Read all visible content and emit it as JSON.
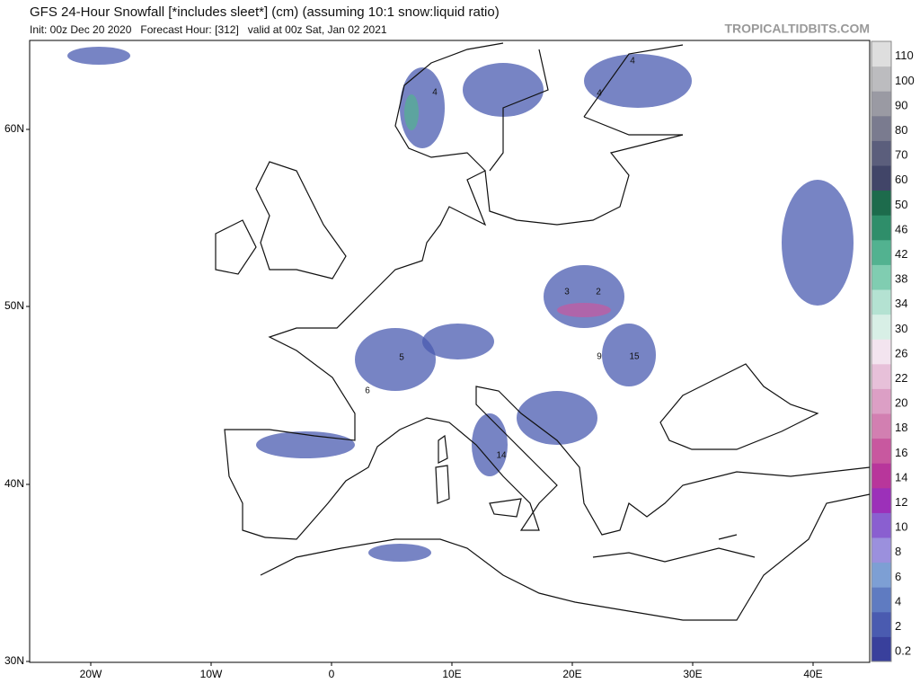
{
  "header": {
    "title": "GFS 24-Hour Snowfall [*includes sleet*] (cm) (assuming 10:1 snow:liquid ratio)",
    "subtitle": "Init: 00z Dec 20 2020   Forecast Hour: [312]   valid at 00z Sat, Jan 02 2021",
    "watermark": "TROPICALTIDBITS.COM"
  },
  "map": {
    "lat_labels": [
      "60N",
      "50N",
      "40N",
      "30N"
    ],
    "lon_labels": [
      "20W",
      "10W",
      "0",
      "10E",
      "20E",
      "30E",
      "40E"
    ],
    "contour_labels": [
      "4",
      "4",
      "4",
      "3",
      "2",
      "5",
      "6",
      "15",
      "9",
      "14"
    ]
  },
  "colorbar": {
    "levels": [
      {
        "label": "0.2",
        "color": "#39409c"
      },
      {
        "label": "2",
        "color": "#4a5bb0"
      },
      {
        "label": "4",
        "color": "#5f7bc1"
      },
      {
        "label": "6",
        "color": "#7d9fd4"
      },
      {
        "label": "8",
        "color": "#9b90dd"
      },
      {
        "label": "10",
        "color": "#8a5fd0"
      },
      {
        "label": "12",
        "color": "#9c30b9"
      },
      {
        "label": "14",
        "color": "#b8369b"
      },
      {
        "label": "16",
        "color": "#c8589f"
      },
      {
        "label": "18",
        "color": "#d27fb1"
      },
      {
        "label": "20",
        "color": "#dc9fc5"
      },
      {
        "label": "22",
        "color": "#e7c0d9"
      },
      {
        "label": "26",
        "color": "#f3e4ef"
      },
      {
        "label": "30",
        "color": "#d8efe6"
      },
      {
        "label": "34",
        "color": "#b4e2d2"
      },
      {
        "label": "38",
        "color": "#80cdb1"
      },
      {
        "label": "42",
        "color": "#52b290"
      },
      {
        "label": "46",
        "color": "#2f8e6a"
      },
      {
        "label": "50",
        "color": "#1d6b4c"
      },
      {
        "label": "60",
        "color": "#414568"
      },
      {
        "label": "70",
        "color": "#5b5e7c"
      },
      {
        "label": "80",
        "color": "#7a7b8f"
      },
      {
        "label": "90",
        "color": "#9a9aa3"
      },
      {
        "label": "100",
        "color": "#bcbcbf"
      },
      {
        "label": "110",
        "color": "#dedede"
      }
    ]
  }
}
